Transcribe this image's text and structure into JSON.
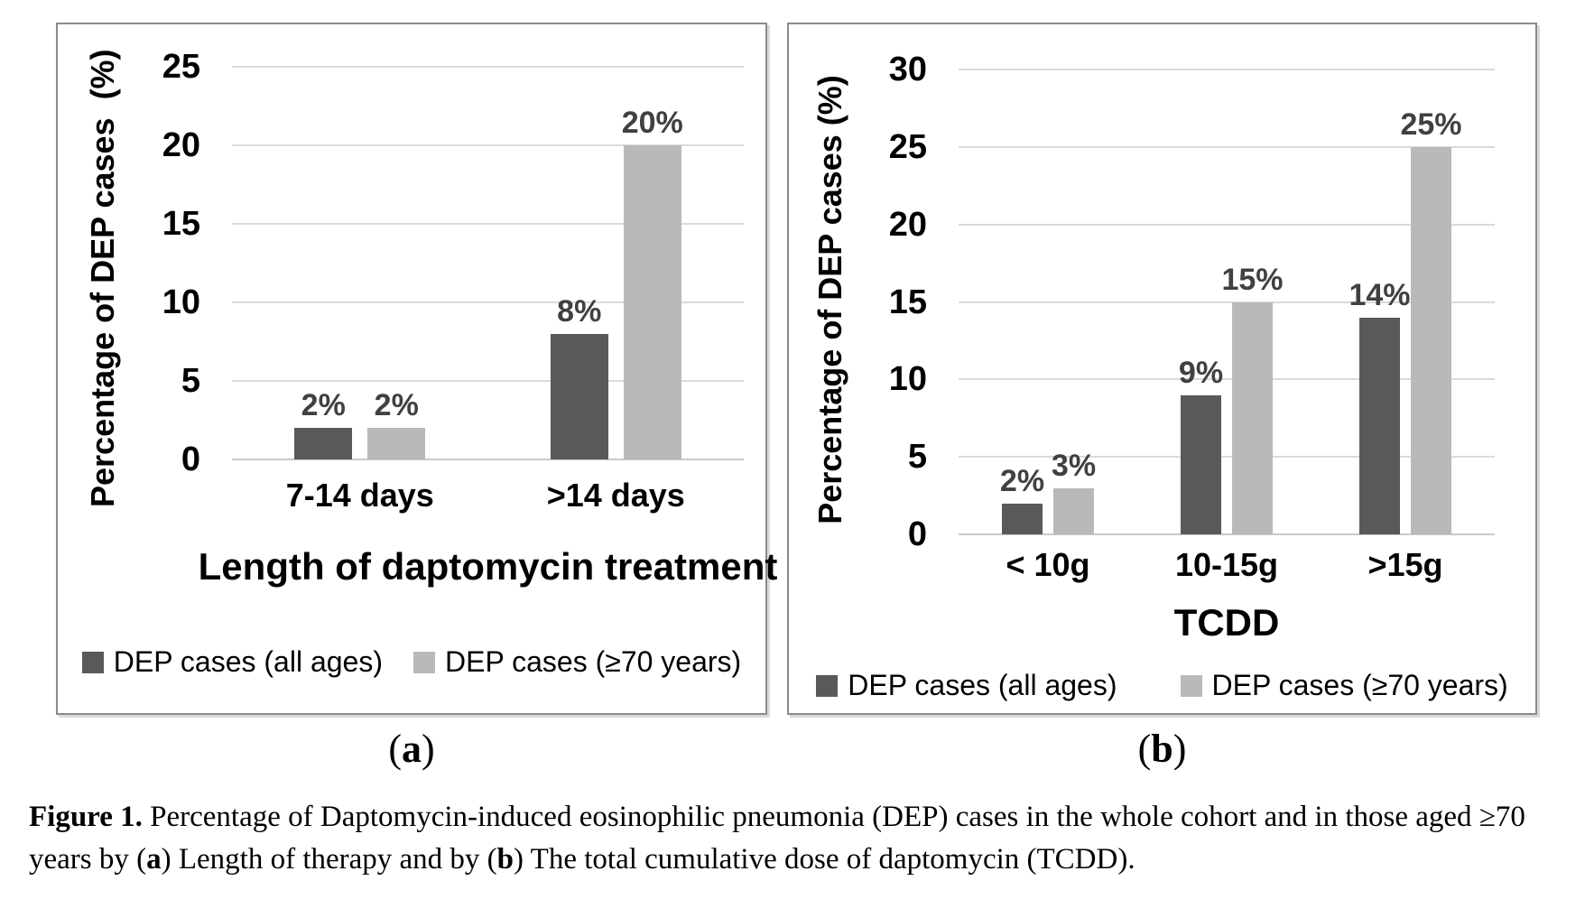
{
  "colors": {
    "series1": "#595959",
    "series2": "#b9b9b9",
    "gridline": "#dadada",
    "axis_line": "#c9c9c9",
    "data_label": "#404040",
    "text": "#000000",
    "panel_border": "#8a8a8a",
    "background": "#ffffff"
  },
  "chart_data": [
    {
      "id": "chart-a",
      "type": "bar",
      "categories": [
        "7-14 days",
        ">14 days"
      ],
      "series": [
        {
          "name": "DEP cases (all ages)",
          "values": [
            2,
            8
          ],
          "labels": [
            "2%",
            "8%"
          ],
          "color_key": "series1"
        },
        {
          "name": "DEP cases (≥70 years)",
          "values": [
            2,
            20
          ],
          "labels": [
            "2%",
            "20%"
          ],
          "color_key": "series2"
        }
      ],
      "xlabel": "Length of daptomycin treatment",
      "ylabel": "Percentage of DEP cases  (%)",
      "ylim": [
        0,
        25
      ],
      "yticks": [
        0,
        5,
        10,
        15,
        20,
        25
      ],
      "grid": true,
      "legend_position": "bottom"
    },
    {
      "id": "chart-b",
      "type": "bar",
      "categories": [
        "< 10g",
        "10-15g",
        ">15g"
      ],
      "series": [
        {
          "name": "DEP cases (all ages)",
          "values": [
            2,
            9,
            14
          ],
          "labels": [
            "2%",
            "9%",
            "14%"
          ],
          "color_key": "series1"
        },
        {
          "name": "DEP cases (≥70 years)",
          "values": [
            3,
            15,
            25
          ],
          "labels": [
            "3%",
            "15%",
            "25%"
          ],
          "color_key": "series2"
        }
      ],
      "xlabel": "TCDD",
      "ylabel": "Percentage of DEP cases (%)",
      "ylim": [
        0,
        30
      ],
      "yticks": [
        0,
        5,
        10,
        15,
        20,
        25,
        30
      ],
      "grid": true,
      "legend_position": "bottom"
    }
  ],
  "panel_labels": [
    {
      "runs": [
        {
          "text": "(",
          "bold": false
        },
        {
          "text": "a",
          "bold": true
        },
        {
          "text": ")",
          "bold": false
        }
      ]
    },
    {
      "runs": [
        {
          "text": "(",
          "bold": false
        },
        {
          "text": "b",
          "bold": true
        },
        {
          "text": ")",
          "bold": false
        }
      ]
    }
  ],
  "caption": {
    "runs": [
      {
        "text": "Figure 1.",
        "bold": true
      },
      {
        "text": " Percentage of Daptomycin-induced eosinophilic pneumonia (DEP) cases in the whole cohort and in those aged ≥70 years by (",
        "bold": false
      },
      {
        "text": "a",
        "bold": true
      },
      {
        "text": ") Length of therapy and by (",
        "bold": false
      },
      {
        "text": "b",
        "bold": true
      },
      {
        "text": ") The total cumulative dose of daptomycin (TCDD).",
        "bold": false
      }
    ]
  }
}
